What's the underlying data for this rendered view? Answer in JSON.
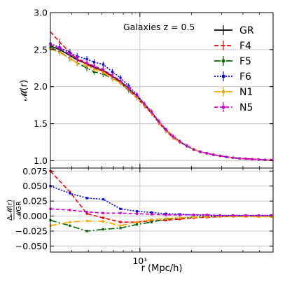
{
  "chart_data": [
    {
      "type": "line",
      "panel": "top",
      "annotation": "Galaxies z = 0.5",
      "ylabel": "𝓜(r)",
      "xlabel": "",
      "xscale": "log",
      "xlim": [
        3.0,
        60.0
      ],
      "ylim": [
        0.9,
        3.0
      ],
      "yticks": [
        "1.0",
        "1.5",
        "2.0",
        "2.5",
        "3.0"
      ],
      "xtick_major": "10¹",
      "grid": true,
      "legend_position": "top-right",
      "x": [
        3.0,
        3.4,
        3.9,
        4.3,
        4.9,
        5.4,
        6.1,
        6.9,
        7.7,
        8.6,
        9.6,
        10.6,
        11.7,
        12.9,
        14.2,
        15.6,
        17.1,
        18.8,
        20.6,
        22.5,
        24.6,
        26.9,
        29.4,
        32.1,
        35.0,
        38.2,
        41.6,
        45.3,
        49.4,
        53.8,
        58.5
      ],
      "series": [
        {
          "name": "GR",
          "color": "#000000",
          "dash": "solid",
          "marker": "none",
          "values": [
            2.55,
            2.5,
            2.42,
            2.36,
            2.31,
            2.26,
            2.22,
            2.14,
            2.07,
            1.97,
            1.87,
            1.76,
            1.65,
            1.52,
            1.41,
            1.32,
            1.25,
            1.2,
            1.15,
            1.12,
            1.1,
            1.08,
            1.065,
            1.05,
            1.04,
            1.03,
            1.025,
            1.02,
            1.015,
            1.01,
            1.01
          ]
        },
        {
          "name": "F4",
          "color": "#ff0000",
          "dash": "6,3",
          "marker": "none",
          "values": [
            2.74,
            2.6,
            2.46,
            2.37,
            2.3,
            2.25,
            2.21,
            2.13,
            2.05,
            1.95,
            1.85,
            1.74,
            1.64,
            1.51,
            1.4,
            1.31,
            1.25,
            1.2,
            1.15,
            1.12,
            1.1,
            1.08,
            1.065,
            1.05,
            1.04,
            1.03,
            1.025,
            1.02,
            1.015,
            1.01,
            1.01
          ]
        },
        {
          "name": "F5",
          "color": "#006400",
          "dash": "9,3,2,3",
          "marker": "circle",
          "values": [
            2.53,
            2.47,
            2.38,
            2.32,
            2.25,
            2.2,
            2.17,
            2.11,
            2.05,
            1.95,
            1.86,
            1.75,
            1.65,
            1.52,
            1.41,
            1.32,
            1.25,
            1.2,
            1.15,
            1.12,
            1.1,
            1.08,
            1.065,
            1.05,
            1.04,
            1.03,
            1.025,
            1.02,
            1.015,
            1.01,
            1.01
          ]
        },
        {
          "name": "F6",
          "color": "#0000ff",
          "dash": "2,2",
          "marker": "square",
          "values": [
            2.58,
            2.53,
            2.46,
            2.41,
            2.37,
            2.33,
            2.3,
            2.2,
            2.12,
            2.01,
            1.89,
            1.77,
            1.66,
            1.53,
            1.42,
            1.33,
            1.26,
            1.2,
            1.15,
            1.12,
            1.1,
            1.08,
            1.065,
            1.05,
            1.04,
            1.03,
            1.025,
            1.02,
            1.015,
            1.01,
            1.01
          ]
        },
        {
          "name": "N1",
          "color": "#ffa500",
          "dash": "9,3,2,3",
          "marker": "circle",
          "values": [
            2.51,
            2.46,
            2.38,
            2.32,
            2.28,
            2.24,
            2.19,
            2.11,
            2.05,
            1.96,
            1.86,
            1.75,
            1.65,
            1.52,
            1.41,
            1.32,
            1.25,
            1.2,
            1.15,
            1.12,
            1.1,
            1.08,
            1.065,
            1.05,
            1.04,
            1.03,
            1.025,
            1.02,
            1.015,
            1.01,
            1.01
          ]
        },
        {
          "name": "N5",
          "color": "#cc00cc",
          "dash": "5,3",
          "marker": "square",
          "values": [
            2.57,
            2.52,
            2.44,
            2.38,
            2.32,
            2.28,
            2.23,
            2.15,
            2.08,
            1.98,
            1.88,
            1.77,
            1.66,
            1.53,
            1.42,
            1.33,
            1.26,
            1.2,
            1.15,
            1.12,
            1.1,
            1.08,
            1.065,
            1.05,
            1.04,
            1.03,
            1.025,
            1.02,
            1.015,
            1.01,
            1.01
          ]
        }
      ]
    },
    {
      "type": "line",
      "panel": "bottom",
      "ylabel_numerator": "Δ𝓜(r)",
      "ylabel_denominator": "𝓜GR",
      "xlabel": "r (Mpc/h)",
      "xscale": "log",
      "xlim": [
        3.0,
        60.0
      ],
      "ylim": [
        -0.06,
        0.08
      ],
      "yticks": [
        "0.075",
        "0.050",
        "0.025",
        "0.000",
        "−0.025",
        "−0.050"
      ],
      "xtick_major": "10¹",
      "grid": true,
      "x": [
        3.0,
        3.9,
        4.9,
        6.1,
        7.7,
        9.6,
        11.7,
        14.2,
        17.1,
        20.6,
        24.6,
        29.4,
        35.0,
        41.6,
        49.4,
        58.5
      ],
      "series": [
        {
          "name": "F4",
          "color": "#ff0000",
          "dash": "6,3",
          "values": [
            0.075,
            0.04,
            0.004,
            -0.003,
            -0.01,
            -0.01,
            -0.008,
            -0.007,
            -0.005,
            -0.003,
            -0.002,
            -0.001,
            0.0,
            0.0,
            0.0,
            0.0
          ]
        },
        {
          "name": "F5",
          "color": "#006400",
          "dash": "9,3,2,3",
          "values": [
            -0.007,
            -0.016,
            -0.025,
            -0.022,
            -0.02,
            -0.014,
            -0.01,
            -0.005,
            -0.003,
            -0.002,
            -0.001,
            0.0,
            0.0,
            0.0,
            0.0,
            0.0
          ]
        },
        {
          "name": "F6",
          "color": "#0000ff",
          "dash": "2,2",
          "values": [
            0.05,
            0.038,
            0.03,
            0.028,
            0.012,
            0.008,
            0.006,
            0.004,
            0.003,
            0.002,
            0.001,
            0.001,
            0.001,
            0.001,
            0.001,
            0.001
          ]
        },
        {
          "name": "N1",
          "color": "#ffa500",
          "dash": "9,3,2,3",
          "values": [
            -0.016,
            -0.01,
            -0.008,
            -0.009,
            -0.016,
            -0.01,
            -0.006,
            -0.004,
            -0.003,
            -0.002,
            -0.001,
            -0.001,
            -0.001,
            -0.001,
            -0.001,
            -0.001
          ]
        },
        {
          "name": "N5",
          "color": "#cc00cc",
          "dash": "5,3",
          "values": [
            0.012,
            0.01,
            0.007,
            0.005,
            0.005,
            0.004,
            0.003,
            0.002,
            0.002,
            0.002,
            0.002,
            0.001,
            0.001,
            0.001,
            0.001,
            0.001
          ]
        }
      ]
    }
  ]
}
